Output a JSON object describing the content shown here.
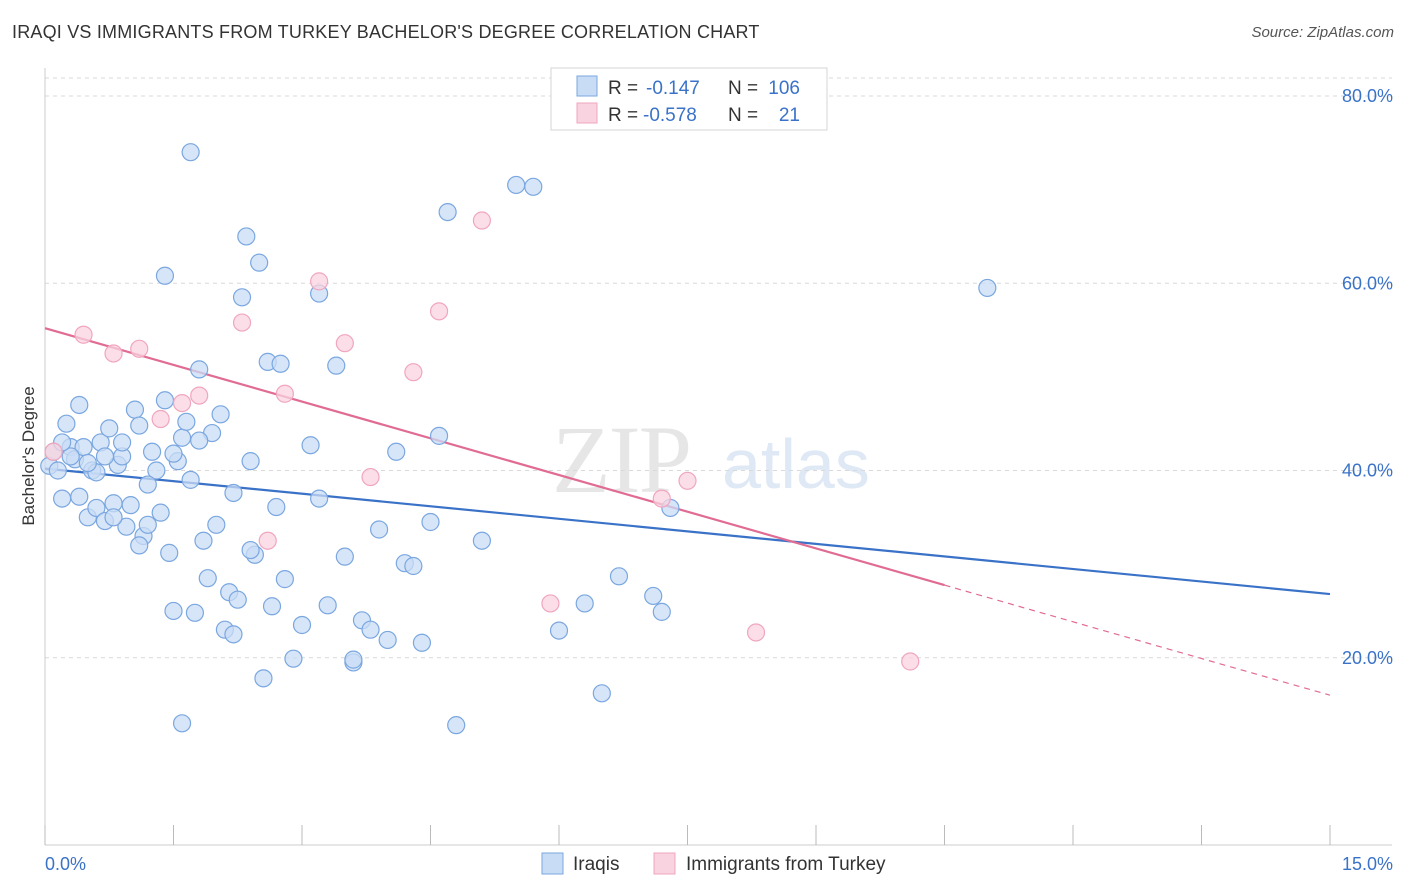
{
  "title": "IRAQI VS IMMIGRANTS FROM TURKEY BACHELOR'S DEGREE CORRELATION CHART",
  "source": "Source: ZipAtlas.com",
  "watermark": {
    "zip": "ZIP",
    "atlas": "atlas"
  },
  "colors": {
    "blue": "#3a72c8",
    "blue_fill": "#c9dcf5",
    "blue_stroke": "#7aa7e0",
    "pink": "#e06b93",
    "pink_fill": "#f9d3df",
    "pink_stroke": "#f0a6bf",
    "grid": "#d9d9d9"
  },
  "stats_legend": {
    "rows": [
      {
        "r_label": "R =",
        "r_value": "-0.147",
        "n_label": "N =",
        "n_value": "106"
      },
      {
        "r_label": "R =",
        "r_value": "-0.578",
        "n_label": "N =",
        "n_value": "21"
      }
    ]
  },
  "bottom_legend": [
    "Iraqis",
    "Immigrants from Turkey"
  ],
  "chart_data": {
    "type": "scatter",
    "ylabel": "Bachelor's Degree",
    "xlim": [
      0,
      15
    ],
    "ylim": [
      0,
      80
    ],
    "x_tick_labels": [
      "0.0%",
      "15.0%"
    ],
    "y_ticks": [
      20,
      40,
      60,
      80
    ],
    "y_tick_labels": [
      "20.0%",
      "40.0%",
      "60.0%",
      "80.0%"
    ],
    "grid": true,
    "series": [
      {
        "name": "Iraqis",
        "color": "blue",
        "trend": {
          "x": [
            0,
            15
          ],
          "y": [
            40.2,
            26.8
          ],
          "solid_to": 15
        },
        "points": [
          [
            0.05,
            40.5
          ],
          [
            0.1,
            42
          ],
          [
            0.15,
            40
          ],
          [
            0.2,
            37
          ],
          [
            0.25,
            45
          ],
          [
            0.3,
            42.5
          ],
          [
            0.35,
            41.2
          ],
          [
            0.4,
            47
          ],
          [
            0.45,
            42.5
          ],
          [
            0.5,
            35
          ],
          [
            0.55,
            40
          ],
          [
            0.6,
            36
          ],
          [
            0.65,
            43
          ],
          [
            0.7,
            34.6
          ],
          [
            0.75,
            44.5
          ],
          [
            0.8,
            36.5
          ],
          [
            0.85,
            40.6
          ],
          [
            0.9,
            41.5
          ],
          [
            0.95,
            34
          ],
          [
            1.0,
            36.3
          ],
          [
            1.05,
            46.5
          ],
          [
            1.1,
            44.8
          ],
          [
            1.15,
            33
          ],
          [
            1.2,
            34.2
          ],
          [
            1.25,
            42
          ],
          [
            1.3,
            40
          ],
          [
            1.35,
            35.5
          ],
          [
            1.4,
            47.5
          ],
          [
            1.45,
            31.2
          ],
          [
            1.5,
            25
          ],
          [
            1.55,
            41
          ],
          [
            1.6,
            43.5
          ],
          [
            1.65,
            45.2
          ],
          [
            1.7,
            39
          ],
          [
            1.75,
            24.8
          ],
          [
            1.8,
            50.8
          ],
          [
            1.85,
            32.5
          ],
          [
            1.9,
            28.5
          ],
          [
            1.95,
            44
          ],
          [
            2.0,
            34.2
          ],
          [
            2.05,
            46
          ],
          [
            2.1,
            23
          ],
          [
            2.15,
            27
          ],
          [
            2.2,
            37.6
          ],
          [
            2.25,
            26.2
          ],
          [
            2.3,
            58.5
          ],
          [
            2.35,
            65
          ],
          [
            2.4,
            41
          ],
          [
            2.45,
            31
          ],
          [
            2.5,
            62.2
          ],
          [
            2.55,
            17.8
          ],
          [
            2.6,
            51.6
          ],
          [
            2.65,
            25.5
          ],
          [
            2.7,
            36.1
          ],
          [
            2.75,
            51.4
          ],
          [
            2.8,
            28.4
          ],
          [
            2.9,
            19.9
          ],
          [
            3.0,
            23.5
          ],
          [
            3.1,
            42.7
          ],
          [
            3.2,
            58.9
          ],
          [
            3.3,
            25.6
          ],
          [
            3.4,
            51.2
          ],
          [
            3.5,
            30.8
          ],
          [
            3.6,
            19.5
          ],
          [
            3.7,
            24
          ],
          [
            3.8,
            23
          ],
          [
            3.9,
            33.7
          ],
          [
            4.0,
            21.9
          ],
          [
            4.1,
            42
          ],
          [
            4.2,
            30.1
          ],
          [
            4.3,
            29.8
          ],
          [
            4.4,
            21.6
          ],
          [
            4.5,
            34.5
          ],
          [
            4.6,
            43.7
          ],
          [
            4.7,
            67.6
          ],
          [
            4.8,
            12.8
          ],
          [
            5.1,
            32.5
          ],
          [
            5.5,
            70.5
          ],
          [
            5.7,
            70.3
          ],
          [
            6.0,
            22.9
          ],
          [
            6.3,
            25.8
          ],
          [
            6.5,
            16.2
          ],
          [
            6.7,
            28.7
          ],
          [
            7.1,
            26.6
          ],
          [
            7.2,
            24.9
          ],
          [
            7.3,
            36
          ],
          [
            1.7,
            74
          ],
          [
            1.4,
            60.8
          ],
          [
            1.6,
            13
          ],
          [
            2.2,
            22.5
          ],
          [
            0.3,
            41.5
          ],
          [
            0.6,
            39.8
          ],
          [
            0.9,
            43
          ],
          [
            1.2,
            38.5
          ],
          [
            1.5,
            41.8
          ],
          [
            1.8,
            43.2
          ],
          [
            1.1,
            32
          ],
          [
            0.8,
            35
          ],
          [
            0.4,
            37.2
          ],
          [
            0.7,
            41.5
          ],
          [
            3.6,
            19.8
          ],
          [
            2.4,
            31.5
          ],
          [
            3.2,
            37
          ],
          [
            11.0,
            59.5
          ],
          [
            0.2,
            43
          ],
          [
            0.5,
            40.8
          ]
        ]
      },
      {
        "name": "Immigrants from Turkey",
        "color": "pink",
        "trend": {
          "x": [
            0,
            15
          ],
          "y": [
            55.2,
            16
          ],
          "solid_to": 10.5
        },
        "points": [
          [
            0.1,
            42
          ],
          [
            0.45,
            54.5
          ],
          [
            0.8,
            52.5
          ],
          [
            1.1,
            53
          ],
          [
            1.35,
            45.5
          ],
          [
            1.6,
            47.2
          ],
          [
            1.8,
            48
          ],
          [
            2.3,
            55.8
          ],
          [
            2.6,
            32.5
          ],
          [
            2.8,
            48.2
          ],
          [
            3.2,
            60.2
          ],
          [
            3.5,
            53.6
          ],
          [
            3.8,
            39.3
          ],
          [
            4.3,
            50.5
          ],
          [
            4.6,
            57
          ],
          [
            5.1,
            66.7
          ],
          [
            7.2,
            37
          ],
          [
            7.5,
            38.9
          ],
          [
            5.9,
            25.8
          ],
          [
            8.3,
            22.7
          ],
          [
            10.1,
            19.6
          ]
        ]
      }
    ]
  }
}
